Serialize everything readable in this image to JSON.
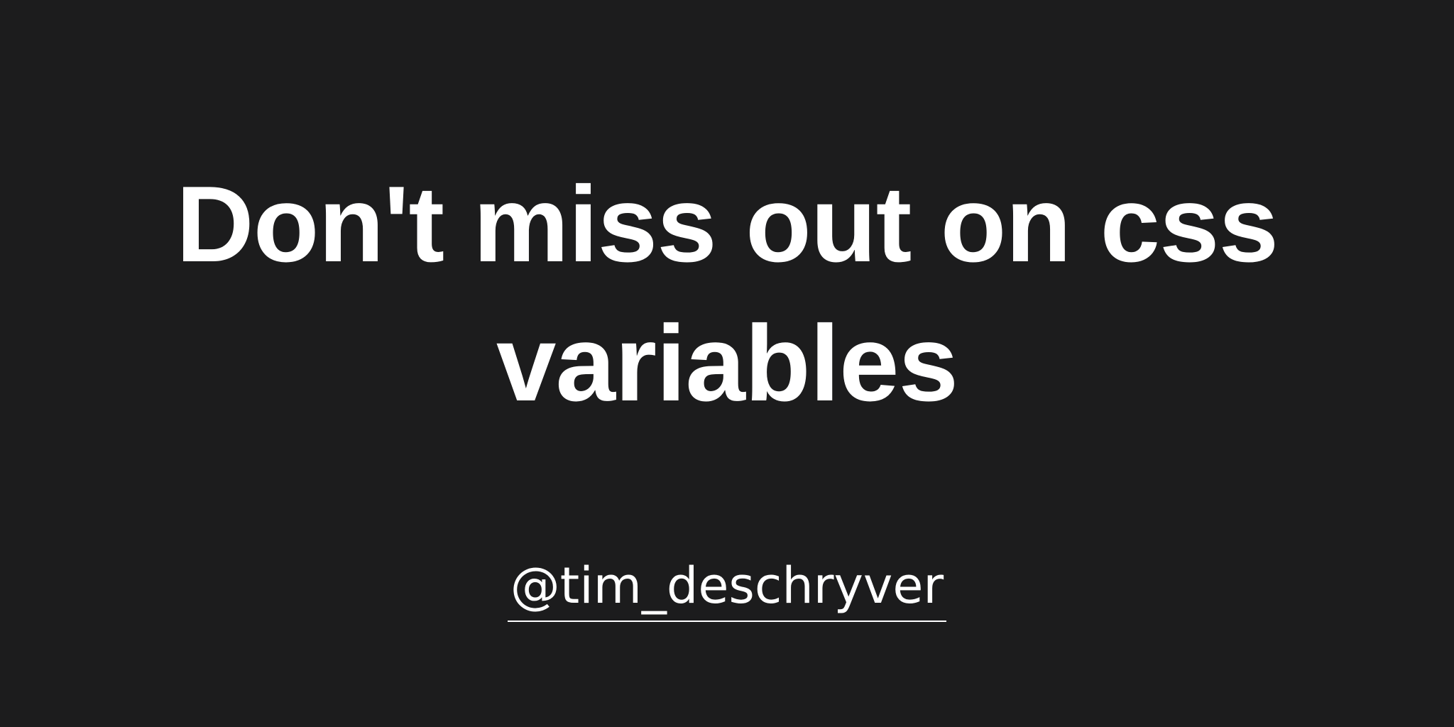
{
  "banner": {
    "title_line_1": "Don't miss out on css",
    "title_line_2": "variables",
    "author_handle": "@tim_deschryver"
  },
  "colors": {
    "background": "#1c1c1d",
    "text": "#ffffff"
  }
}
